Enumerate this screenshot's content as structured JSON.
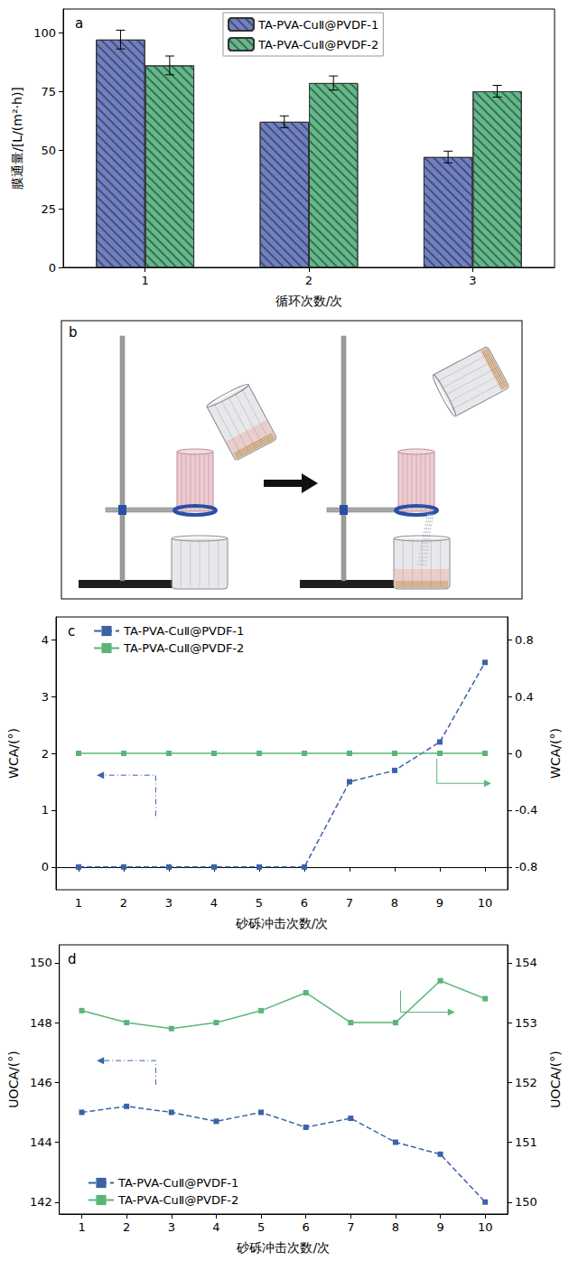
{
  "chart_data": [
    {
      "type": "bar",
      "title": "a",
      "categories": [
        "1",
        "2",
        "3"
      ],
      "x_label": "循环次数/次",
      "y_label": "膜通量/[L/(m²·h)]",
      "ylim": [
        0,
        110
      ],
      "yticks": [
        0,
        25,
        50,
        75,
        100
      ],
      "grid": false,
      "legend": "upper center",
      "series": [
        {
          "name": "TA-PVA-CuⅡ@PVDF-1",
          "color": "#7080c4",
          "values": [
            97,
            62,
            47
          ],
          "errors": [
            4,
            2.5,
            2.5
          ]
        },
        {
          "name": "TA-PVA-CuⅡ@PVDF-2",
          "color": "#62b98a",
          "values": [
            86,
            78.5,
            75
          ],
          "errors": [
            4,
            3,
            2.5
          ]
        }
      ]
    },
    {
      "type": "line",
      "title": "c",
      "categories": [
        "1",
        "2",
        "3",
        "4",
        "5",
        "6",
        "7",
        "8",
        "9",
        "10"
      ],
      "x_label": "砂砾冲击次数/次",
      "y_label": "WCA/(°)",
      "y2_label": "WCA/(°)",
      "ylim": [
        -0.4,
        4.4
      ],
      "yticks": [
        0,
        1,
        2,
        3,
        4
      ],
      "y2lim": [
        -0.96,
        0.96
      ],
      "y2ticks": [
        -0.8,
        -0.4,
        0,
        0.4,
        0.8
      ],
      "grid": false,
      "legend": "upper left",
      "series": [
        {
          "name": "TA-PVA-CuⅡ@PVDF-1",
          "color": "#3a63a6",
          "marker": "square",
          "line_style": "dashed",
          "values": [
            0,
            0,
            0,
            0,
            0,
            0,
            1.5,
            1.7,
            2.2,
            3.6
          ]
        },
        {
          "name": "TA-PVA-CuⅡ@PVDF-2",
          "color": "#5bb579",
          "marker": "square",
          "line_style": "solid",
          "axis": "y2",
          "values": [
            0,
            0,
            0,
            0,
            0,
            0,
            0,
            0,
            0,
            0
          ]
        }
      ]
    },
    {
      "type": "line",
      "title": "d",
      "categories": [
        "1",
        "2",
        "3",
        "4",
        "5",
        "6",
        "7",
        "8",
        "9",
        "10"
      ],
      "x_label": "砂砾冲击次数/次",
      "y_label": "UOCA/(°)",
      "y2_label": "UOCA/(°)",
      "ylim": [
        141.6,
        150.6
      ],
      "yticks": [
        142,
        144,
        146,
        148,
        150
      ],
      "y2lim": [
        149.8,
        154.3
      ],
      "y2ticks": [
        150,
        151,
        152,
        153,
        154
      ],
      "grid": false,
      "legend": "lower left",
      "series": [
        {
          "name": "TA-PVA-CuⅡ@PVDF-1",
          "color": "#3a63a6",
          "marker": "square",
          "line_style": "dashed",
          "values": [
            145,
            145.2,
            145,
            144.7,
            145,
            144.5,
            144.8,
            144,
            143.6,
            142
          ]
        },
        {
          "name": "TA-PVA-CuⅡ@PVDF-2",
          "color": "#5bb579",
          "marker": "square",
          "line_style": "solid",
          "axis": "y2",
          "values": [
            153.2,
            153,
            152.9,
            153,
            153.2,
            153.5,
            153,
            153,
            153.7,
            153.4
          ]
        }
      ]
    }
  ],
  "diagram": {
    "label": "b"
  }
}
